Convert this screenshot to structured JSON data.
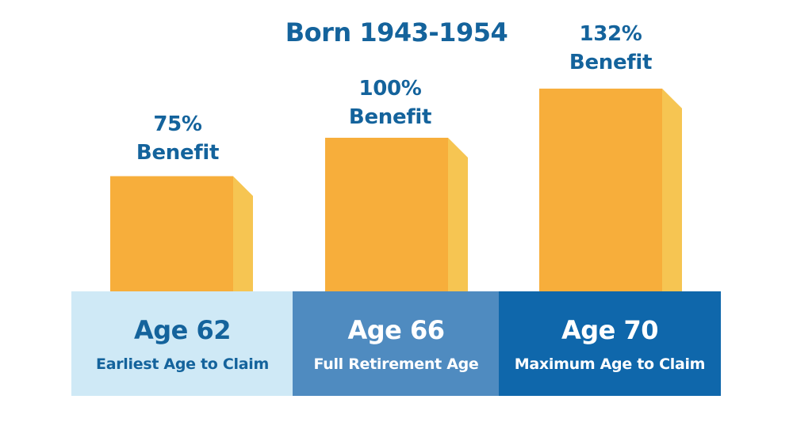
{
  "chart_data": {
    "type": "bar",
    "title": "Born 1943-1954",
    "categories": [
      "Age 62",
      "Age 66",
      "Age 70"
    ],
    "subtitles": [
      "Earliest Age to Claim",
      "Full Retirement Age",
      "Maximum Age to Claim"
    ],
    "values": [
      75,
      100,
      132
    ],
    "value_labels": [
      {
        "pct": "75%",
        "word": "Benefit"
      },
      {
        "pct": "100%",
        "word": "Benefit"
      },
      {
        "pct": "132%",
        "word": "Benefit"
      }
    ],
    "unit": "%",
    "colors": {
      "bar_front": "#f7ae3b",
      "bar_side": "#f6c552",
      "label_text": "#14639c",
      "cell_backgrounds": [
        "#cfe9f6",
        "#4f8bc0",
        "#0f67ab"
      ],
      "cell_text": [
        "#14639c",
        "#ffffff",
        "#ffffff"
      ]
    }
  }
}
